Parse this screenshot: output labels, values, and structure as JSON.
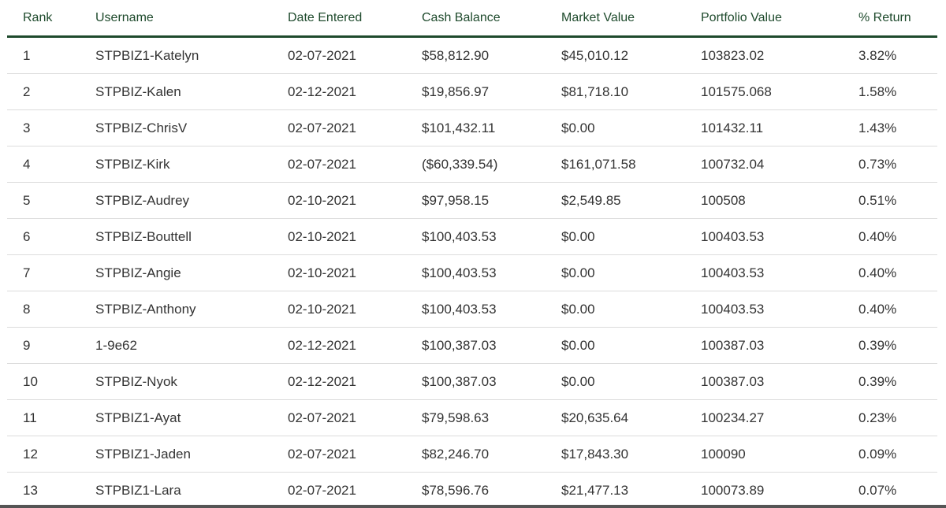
{
  "table": {
    "headers": {
      "rank": "Rank",
      "username": "Username",
      "date": "Date Entered",
      "cash": "Cash Balance",
      "market": "Market Value",
      "portfolio": "Portfolio Value",
      "return": "% Return"
    },
    "rows": [
      {
        "rank": "1",
        "username": "STPBIZ1-Katelyn",
        "date": "02-07-2021",
        "cash": "$58,812.90",
        "market": "$45,010.12",
        "portfolio": "103823.02",
        "return": "3.82%"
      },
      {
        "rank": "2",
        "username": "STPBIZ-Kalen",
        "date": "02-12-2021",
        "cash": "$19,856.97",
        "market": "$81,718.10",
        "portfolio": "101575.068",
        "return": "1.58%"
      },
      {
        "rank": "3",
        "username": "STPBIZ-ChrisV",
        "date": "02-07-2021",
        "cash": "$101,432.11",
        "market": "$0.00",
        "portfolio": "101432.11",
        "return": "1.43%"
      },
      {
        "rank": "4",
        "username": "STPBIZ-Kirk",
        "date": "02-07-2021",
        "cash": "($60,339.54)",
        "market": "$161,071.58",
        "portfolio": "100732.04",
        "return": "0.73%"
      },
      {
        "rank": "5",
        "username": "STPBIZ-Audrey",
        "date": "02-10-2021",
        "cash": "$97,958.15",
        "market": "$2,549.85",
        "portfolio": "100508",
        "return": "0.51%"
      },
      {
        "rank": "6",
        "username": "STPBIZ-Bouttell",
        "date": "02-10-2021",
        "cash": "$100,403.53",
        "market": "$0.00",
        "portfolio": "100403.53",
        "return": "0.40%"
      },
      {
        "rank": "7",
        "username": "STPBIZ-Angie",
        "date": "02-10-2021",
        "cash": "$100,403.53",
        "market": "$0.00",
        "portfolio": "100403.53",
        "return": "0.40%"
      },
      {
        "rank": "8",
        "username": "STPBIZ-Anthony",
        "date": "02-10-2021",
        "cash": "$100,403.53",
        "market": "$0.00",
        "portfolio": "100403.53",
        "return": "0.40%"
      },
      {
        "rank": "9",
        "username": "1-9e62",
        "date": "02-12-2021",
        "cash": "$100,387.03",
        "market": "$0.00",
        "portfolio": "100387.03",
        "return": "0.39%"
      },
      {
        "rank": "10",
        "username": "STPBIZ-Nyok",
        "date": "02-12-2021",
        "cash": "$100,387.03",
        "market": "$0.00",
        "portfolio": "100387.03",
        "return": "0.39%"
      },
      {
        "rank": "11",
        "username": "STPBIZ1-Ayat",
        "date": "02-07-2021",
        "cash": "$79,598.63",
        "market": "$20,635.64",
        "portfolio": "100234.27",
        "return": "0.23%"
      },
      {
        "rank": "12",
        "username": "STPBIZ1-Jaden",
        "date": "02-07-2021",
        "cash": "$82,246.70",
        "market": "$17,843.30",
        "portfolio": "100090",
        "return": "0.09%"
      },
      {
        "rank": "13",
        "username": "STPBIZ1-Lara",
        "date": "02-07-2021",
        "cash": "$78,596.76",
        "market": "$21,477.13",
        "portfolio": "100073.89",
        "return": "0.07%"
      }
    ]
  },
  "colors": {
    "header_text": "#1e4a2c",
    "header_rule": "#1e4a2c",
    "row_rule": "#dcdcdc",
    "cell_text": "#333333"
  }
}
